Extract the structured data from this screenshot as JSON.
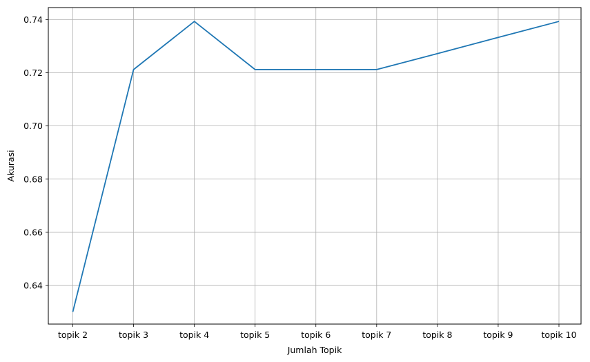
{
  "chart_data": {
    "type": "line",
    "categories": [
      "topik 2",
      "topik 3",
      "topik 4",
      "topik 5",
      "topik 6",
      "topik 7",
      "topik 8",
      "topik 9",
      "topik 10"
    ],
    "series": [
      {
        "values": [
          0.6301,
          0.7212,
          0.7393,
          0.7212,
          0.7212,
          0.7212,
          0.7272,
          0.7333,
          0.7393
        ],
        "color": "#1f77b4"
      }
    ],
    "title": "",
    "xlabel": "Jumlah Topik",
    "ylabel": "Akurasi",
    "ylim": [
      0.6255,
      0.7445
    ],
    "yticks": [
      0.64,
      0.66,
      0.68,
      0.7,
      0.72,
      0.74
    ],
    "ytick_labels": [
      "0.64",
      "0.66",
      "0.68",
      "0.70",
      "0.72",
      "0.74"
    ],
    "grid": true,
    "grid_color": "#b0b0b0",
    "axis_color": "#000000"
  }
}
